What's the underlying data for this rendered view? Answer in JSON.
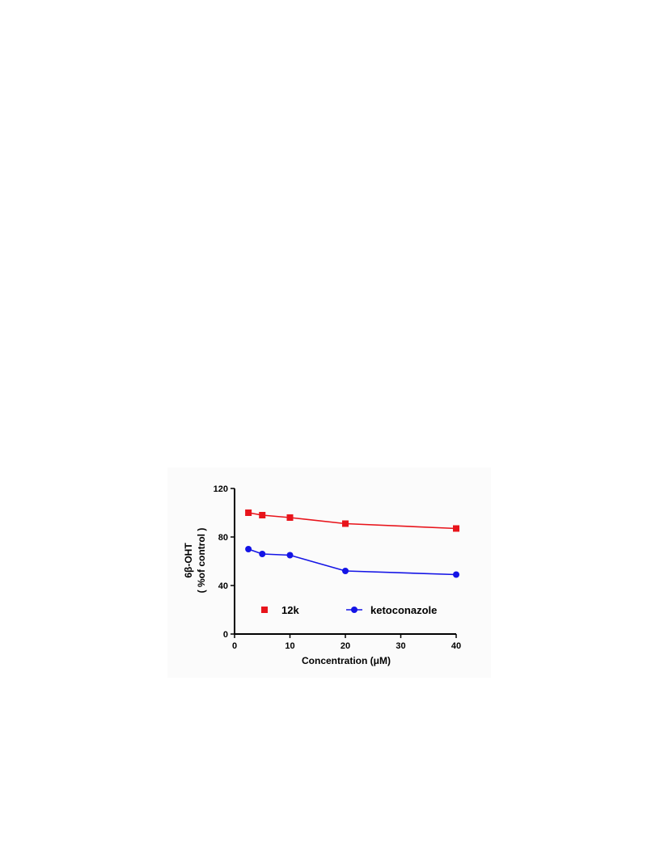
{
  "chart_data": {
    "type": "line",
    "title": "",
    "xlabel": "Concentration  (μM)",
    "ylabel_lines": [
      "6β-OHT",
      "( %of control )"
    ],
    "xlim": [
      0,
      40
    ],
    "ylim": [
      0,
      120
    ],
    "x_ticks": [
      0,
      10,
      20,
      30,
      40
    ],
    "y_ticks": [
      0,
      40,
      80,
      120
    ],
    "x_tick_labels": [
      "0",
      "10",
      "20",
      "30",
      "40"
    ],
    "y_tick_labels": [
      "0",
      "40",
      "80",
      "120"
    ],
    "grid": false,
    "legend_placement": "bottom-inside",
    "series": [
      {
        "name": "12k",
        "marker": "square",
        "color": "#e8141b",
        "x": [
          2.5,
          5,
          10,
          20,
          40
        ],
        "y": [
          100,
          98,
          96,
          91,
          87
        ],
        "error": [
          1.5,
          1,
          1,
          1,
          2
        ]
      },
      {
        "name": "ketoconazole",
        "marker": "circle",
        "color": "#1414e6",
        "x": [
          2.5,
          5,
          10,
          20,
          40
        ],
        "y": [
          70,
          66,
          65,
          52,
          49
        ],
        "error": [
          0.8,
          0.8,
          0.8,
          0.8,
          0.8
        ]
      }
    ]
  }
}
